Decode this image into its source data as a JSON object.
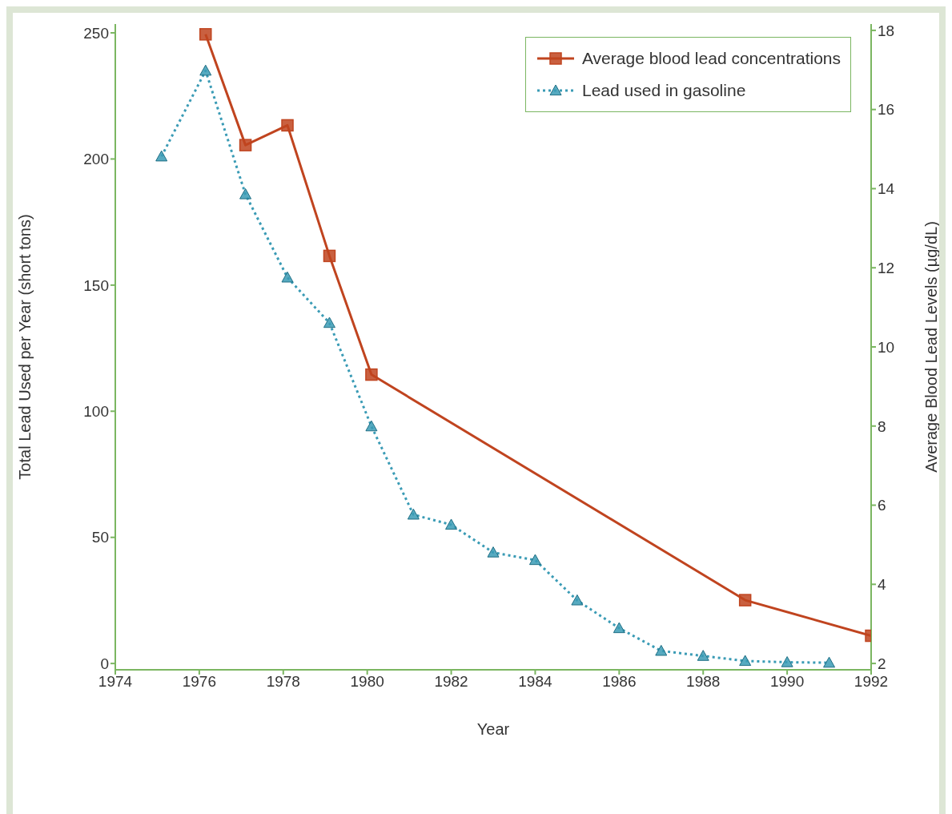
{
  "chart_data": {
    "type": "line",
    "xlabel": "Year",
    "ylabel": "Total Lead Used per Year (short tons)",
    "y2label": "Average Blood Lead Levels (µg/dL)",
    "xlim": [
      1974,
      1992
    ],
    "xticks": [
      1974,
      1976,
      1978,
      1980,
      1982,
      1984,
      1986,
      1988,
      1990,
      1992
    ],
    "ylim": [
      -2.5,
      253.5
    ],
    "yticks": [
      0,
      50,
      100,
      150,
      200,
      250
    ],
    "y2lim": [
      1.84,
      18.16
    ],
    "y2ticks": [
      2,
      4,
      6,
      8,
      10,
      12,
      14,
      16,
      18
    ],
    "grid": false,
    "legend": "top right",
    "series": [
      {
        "name": "Average blood lead concentrations",
        "color": "#c0441f",
        "axis": "y2",
        "marker": "square",
        "line_style": "solid",
        "x": [
          1976.15,
          1977.1,
          1978.1,
          1979.1,
          1980.1,
          1989,
          1992
        ],
        "values": [
          17.9,
          15.1,
          15.6,
          12.3,
          9.3,
          3.6,
          2.7
        ]
      },
      {
        "name": "Lead used in gasoline",
        "color": "#3a9bb5",
        "axis": "y",
        "marker": "triangle",
        "line_style": "dotted",
        "x": [
          1975.1,
          1976.15,
          1977.1,
          1978.1,
          1979.1,
          1980.1,
          1981.1,
          1982,
          1983,
          1984,
          1985,
          1986,
          1987,
          1988,
          1989,
          1990,
          1991
        ],
        "values": [
          201,
          235,
          186,
          153,
          135,
          94,
          59,
          55,
          44,
          41,
          25,
          14,
          5,
          3,
          1,
          0.5,
          0.3
        ]
      }
    ]
  }
}
